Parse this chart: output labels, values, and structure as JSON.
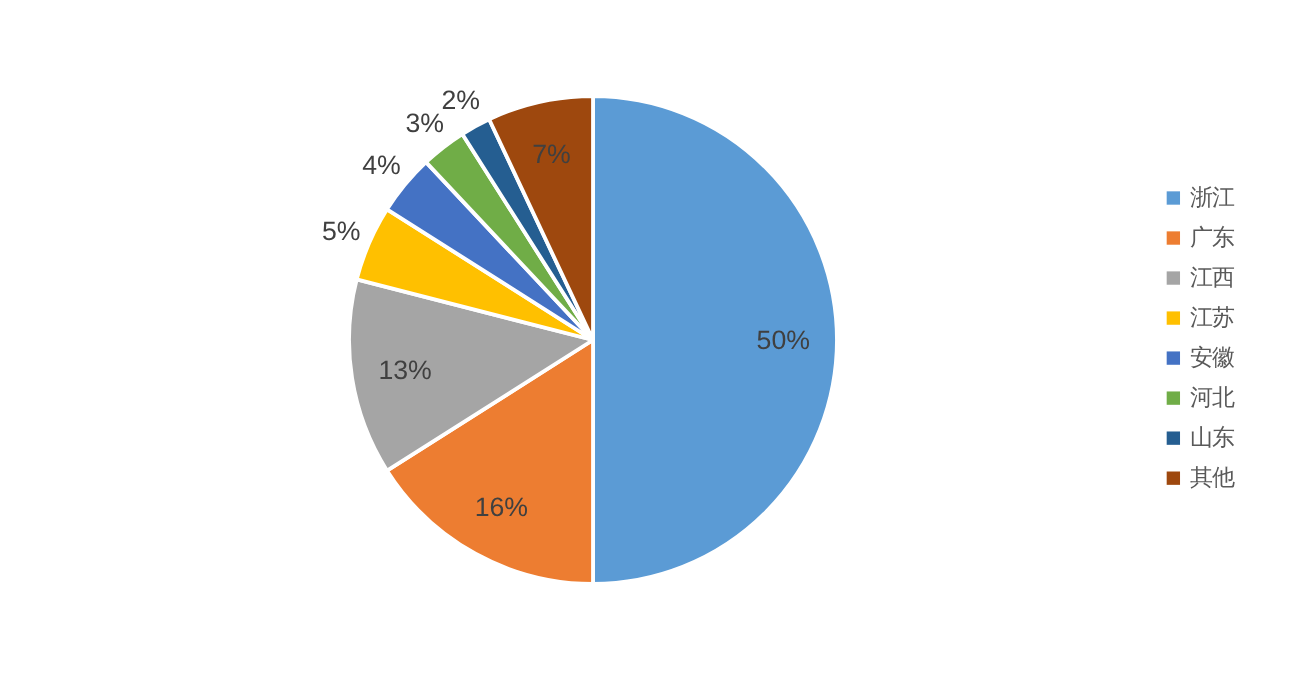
{
  "chart_data": {
    "type": "pie",
    "categories": [
      "浙江",
      "广东",
      "江西",
      "江苏",
      "安徽",
      "河北",
      "山东",
      "其他"
    ],
    "values": [
      50,
      16,
      13,
      5,
      4,
      3,
      2,
      7
    ],
    "colors": [
      "#5b9bd5",
      "#ed7d31",
      "#a5a5a5",
      "#ffc000",
      "#4472c4",
      "#70ad47",
      "#255e91",
      "#9e480e"
    ],
    "value_labels": [
      "50%",
      "16%",
      "13%",
      "5%",
      "4%",
      "3%",
      "2%",
      "7%"
    ],
    "legend": "right"
  }
}
